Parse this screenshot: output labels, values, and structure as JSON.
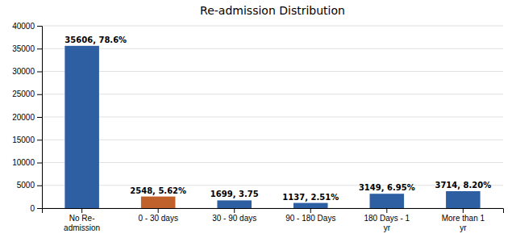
{
  "chart_data": {
    "type": "bar",
    "title": "Re-admission Distribution",
    "categories": [
      "No Re-\nadmission",
      "0 - 30 days",
      "30 - 90 days",
      "90 - 180 Days",
      "180 Days - 1\nyr",
      "More than 1\nyr"
    ],
    "values": [
      35606,
      2548,
      1699,
      1137,
      3149,
      3714
    ],
    "value_labels": [
      "35606, 78.6%",
      "2548, 5.62%",
      "1699, 3.75",
      "1137, 2.51%",
      "3149, 6.95%",
      "3714, 8.20%"
    ],
    "colors": [
      "#2E5FA3",
      "#C0612B",
      "#2E5FA3",
      "#2E5FA3",
      "#2E5FA3",
      "#2E5FA3"
    ],
    "ylim": [
      0,
      40000
    ],
    "yticks": [
      0,
      5000,
      10000,
      15000,
      20000,
      25000,
      30000,
      35000,
      40000
    ],
    "grid": true,
    "data_labels": true
  }
}
